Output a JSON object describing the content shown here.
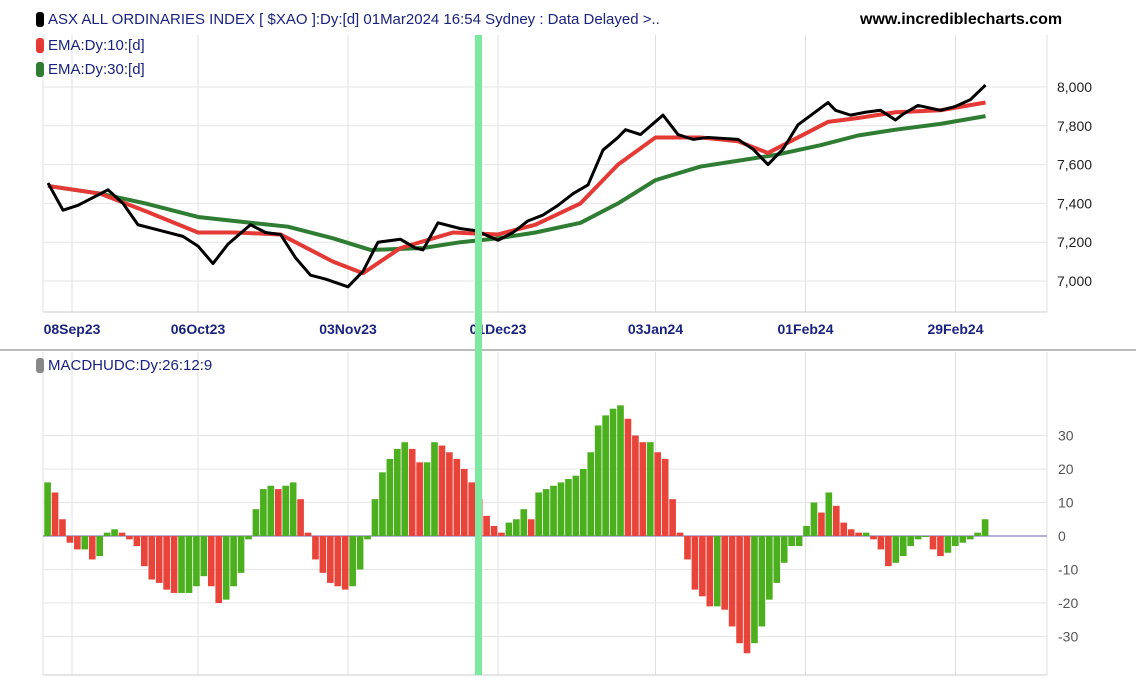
{
  "header": {
    "title": "ASX ALL ORDINARIES INDEX [ $XAO ]:Dy:[d]  01Mar2024 16:54 Sydney : Data Delayed >..",
    "site": "www.incrediblecharts.com"
  },
  "legend": [
    {
      "label": "EMA:Dy:10:[d]",
      "color": "#e53935"
    },
    {
      "label": "EMA:Dy:30:[d]",
      "color": "#2e7d32"
    }
  ],
  "colors": {
    "price": "#000000",
    "ema10": "#e53935",
    "ema30": "#2e7d32",
    "hist_up": "#4caf1e",
    "hist_down": "#e8443a",
    "highlight": "#7de8a0"
  },
  "chart_data": [
    {
      "type": "line",
      "title": "ASX ALL ORDINARIES INDEX [ $XAO ]",
      "ylim": [
        6850,
        8100
      ],
      "yticks": [
        7000,
        7200,
        7400,
        7600,
        7800,
        8000
      ],
      "ytick_labels": [
        "7,000",
        "7,200",
        "7,400",
        "7,600",
        "7,800",
        "8,000"
      ],
      "xticks": [
        {
          "t": 0,
          "label": "08Sep23"
        },
        {
          "t": 20,
          "label": "06Oct23"
        },
        {
          "t": 40,
          "label": "03Nov23"
        },
        {
          "t": 60,
          "label": "01Dec23"
        },
        {
          "t": 81,
          "label": "03Jan24"
        },
        {
          "t": 101,
          "label": "01Feb24"
        },
        {
          "t": 121,
          "label": "29Feb24"
        }
      ],
      "highlight_t": 51,
      "series": [
        {
          "name": "$XAO",
          "points": [
            [
              0,
              7505
            ],
            [
              2,
              7365
            ],
            [
              4,
              7390
            ],
            [
              8,
              7470
            ],
            [
              10,
              7400
            ],
            [
              12,
              7290
            ],
            [
              15,
              7260
            ],
            [
              18,
              7230
            ],
            [
              20,
              7180
            ],
            [
              22,
              7090
            ],
            [
              24,
              7190
            ],
            [
              27,
              7290
            ],
            [
              29,
              7250
            ],
            [
              31,
              7240
            ],
            [
              33,
              7120
            ],
            [
              35,
              7030
            ],
            [
              37,
              7010
            ],
            [
              40,
              6970
            ],
            [
              42,
              7050
            ],
            [
              44,
              7200
            ],
            [
              47,
              7215
            ],
            [
              49,
              7170
            ],
            [
              50,
              7160
            ],
            [
              52,
              7300
            ],
            [
              55,
              7270
            ],
            [
              57,
              7260
            ],
            [
              60,
              7210
            ],
            [
              62,
              7250
            ],
            [
              64,
              7310
            ],
            [
              66,
              7340
            ],
            [
              68,
              7390
            ],
            [
              70,
              7450
            ],
            [
              72,
              7495
            ],
            [
              74,
              7675
            ],
            [
              76,
              7740
            ],
            [
              77,
              7780
            ],
            [
              79,
              7755
            ],
            [
              82,
              7855
            ],
            [
              84,
              7755
            ],
            [
              86,
              7730
            ],
            [
              88,
              7740
            ],
            [
              92,
              7730
            ],
            [
              94,
              7680
            ],
            [
              96,
              7600
            ],
            [
              98,
              7680
            ],
            [
              100,
              7805
            ],
            [
              104,
              7920
            ],
            [
              105,
              7880
            ],
            [
              107,
              7855
            ],
            [
              109,
              7870
            ],
            [
              111,
              7880
            ],
            [
              113,
              7830
            ],
            [
              114,
              7860
            ],
            [
              116,
              7905
            ],
            [
              119,
              7880
            ],
            [
              121,
              7900
            ],
            [
              123,
              7935
            ],
            [
              125,
              8010
            ]
          ]
        },
        {
          "name": "EMA:Dy:10:[d]",
          "points": [
            [
              0,
              7490
            ],
            [
              7,
              7450
            ],
            [
              13,
              7360
            ],
            [
              20,
              7250
            ],
            [
              25,
              7250
            ],
            [
              31,
              7240
            ],
            [
              38,
              7100
            ],
            [
              42,
              7040
            ],
            [
              47,
              7170
            ],
            [
              54,
              7250
            ],
            [
              60,
              7240
            ],
            [
              65,
              7290
            ],
            [
              71,
              7400
            ],
            [
              76,
              7600
            ],
            [
              81,
              7740
            ],
            [
              87,
              7740
            ],
            [
              92,
              7720
            ],
            [
              96,
              7660
            ],
            [
              100,
              7740
            ],
            [
              104,
              7820
            ],
            [
              108,
              7840
            ],
            [
              113,
              7870
            ],
            [
              119,
              7880
            ],
            [
              125,
              7920
            ]
          ]
        },
        {
          "name": "EMA:Dy:30:[d]",
          "points": [
            [
              0,
              7490
            ],
            [
              7,
              7450
            ],
            [
              13,
              7400
            ],
            [
              20,
              7330
            ],
            [
              27,
              7300
            ],
            [
              32,
              7280
            ],
            [
              38,
              7220
            ],
            [
              43,
              7160
            ],
            [
              50,
              7170
            ],
            [
              55,
              7200
            ],
            [
              60,
              7220
            ],
            [
              65,
              7250
            ],
            [
              71,
              7300
            ],
            [
              76,
              7400
            ],
            [
              81,
              7520
            ],
            [
              87,
              7590
            ],
            [
              92,
              7620
            ],
            [
              97,
              7650
            ],
            [
              103,
              7700
            ],
            [
              108,
              7750
            ],
            [
              113,
              7780
            ],
            [
              119,
              7810
            ],
            [
              125,
              7850
            ]
          ]
        }
      ]
    },
    {
      "type": "bar",
      "title": "MACDHUDC:Dy:26:12:9",
      "ylim": [
        -41,
        48
      ],
      "yticks": [
        -30,
        -20,
        -10,
        0,
        10,
        20,
        30
      ],
      "ytick_labels": [
        "-30",
        "-20",
        "-10",
        "0",
        "10",
        "20",
        "30"
      ],
      "values": [
        16,
        13,
        5,
        -2,
        -4,
        -4,
        -7,
        -6,
        1,
        2,
        1,
        -1,
        -3,
        -9,
        -13,
        -14,
        -16,
        -17,
        -17,
        -17,
        -15,
        -12,
        -15,
        -20,
        -19,
        -15,
        -11,
        -1,
        8,
        14,
        15,
        14,
        15,
        16,
        11,
        1,
        -7,
        -11,
        -14,
        -15,
        -16,
        -15,
        -10,
        -1,
        11,
        19,
        23,
        26,
        28,
        26,
        22,
        22,
        28,
        27,
        25,
        23,
        20,
        16,
        11,
        6,
        3,
        1,
        4,
        5,
        8,
        5,
        13,
        14,
        15,
        16,
        17,
        18,
        20,
        25,
        33,
        36,
        38,
        39,
        35,
        30,
        28,
        28,
        25,
        23,
        11,
        1,
        -7,
        -16,
        -18,
        -21,
        -21,
        -22,
        -27,
        -32,
        -35,
        -32,
        -27,
        -19,
        -14,
        -8,
        -3,
        -3,
        3,
        10,
        7,
        13,
        9,
        4,
        2,
        1,
        1,
        -1,
        -4,
        -9,
        -8,
        -6,
        -3,
        -1,
        0,
        -4,
        -6,
        -5,
        -3,
        -2,
        -1,
        1,
        5
      ]
    }
  ]
}
